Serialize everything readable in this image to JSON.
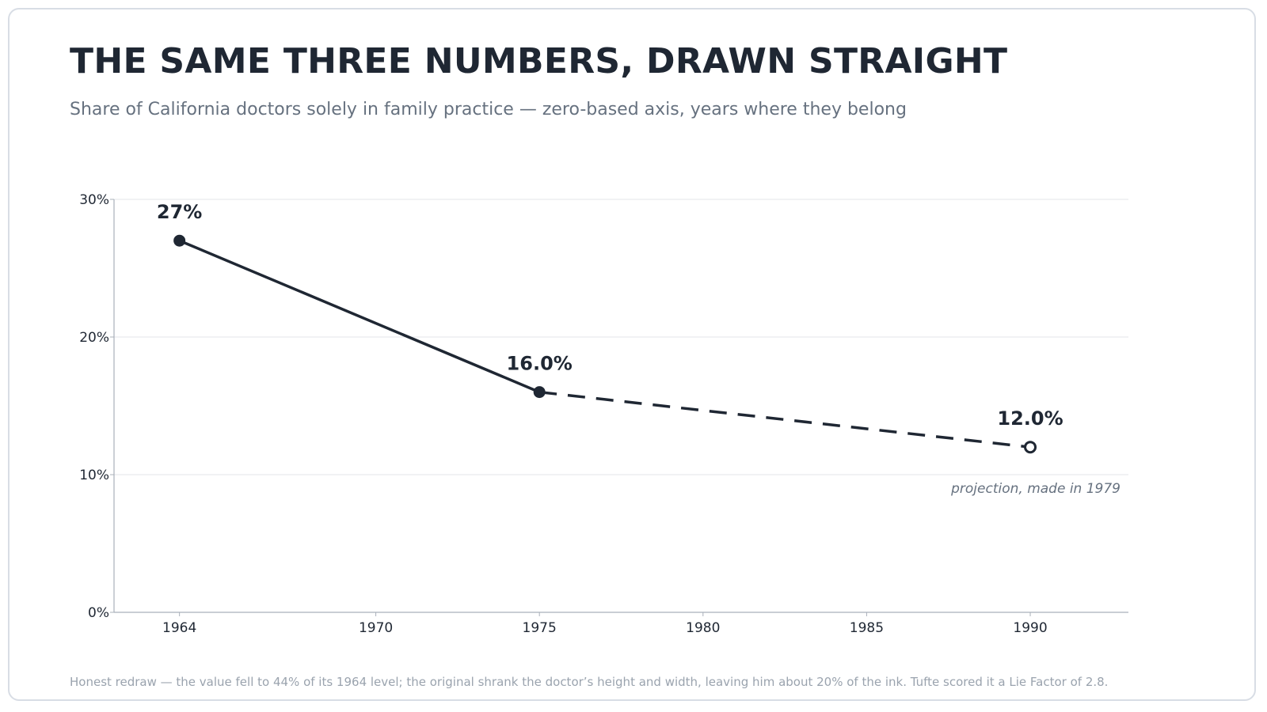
{
  "title": "THE SAME THREE NUMBERS, DRAWN STRAIGHT",
  "subtitle": "Share of California doctors solely in family practice — zero-based axis, years where they belong",
  "footnote": "Honest redraw — the value fell to 44% of its 1964 level; the original shrank the doctor’s height and width, leaving him about 20% of the ink. Tufte scored it a Lie Factor of 2.8.",
  "colors": {
    "ink": "#1f2733",
    "muted": "#66717f",
    "grid": "#e3e6ea",
    "axis": "#a9b0ba"
  },
  "chart_data": {
    "type": "line",
    "title": "",
    "xlabel": "",
    "ylabel": "",
    "xlim": [
      1962,
      1993
    ],
    "ylim": [
      0,
      30
    ],
    "grid": true,
    "x_ticks": [
      1964,
      1970,
      1975,
      1980,
      1985,
      1990
    ],
    "x_tick_labels": [
      "1964",
      "1970",
      "1975",
      "1980",
      "1985",
      "1990"
    ],
    "y_ticks": [
      0,
      10,
      20,
      30
    ],
    "y_tick_labels": [
      "0%",
      "10%",
      "20%",
      "30%"
    ],
    "points": [
      {
        "x": 1964,
        "y": 27,
        "label": "27%",
        "kind": "actual"
      },
      {
        "x": 1975,
        "y": 16,
        "label": "16.0%",
        "kind": "actual"
      },
      {
        "x": 1990,
        "y": 12,
        "label": "12.0%",
        "kind": "projection"
      }
    ],
    "annotation": "projection, made in 1979"
  }
}
